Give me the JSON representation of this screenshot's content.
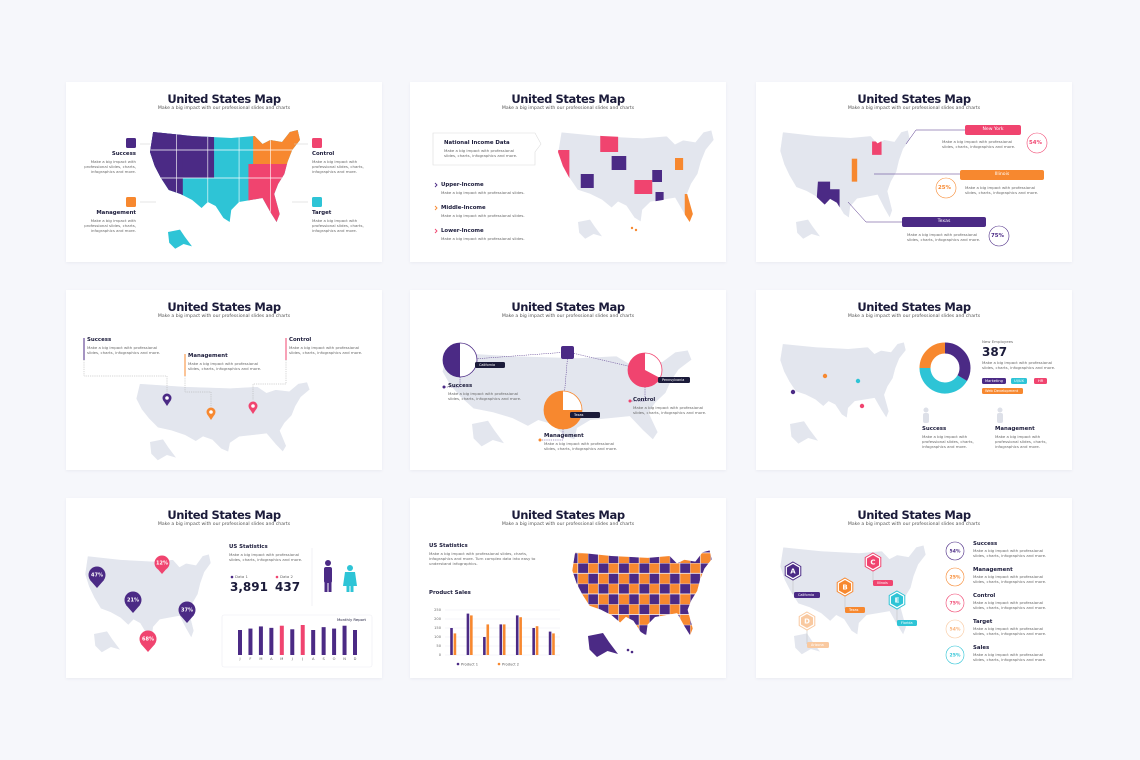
{
  "slides": [
    {
      "title": "United States Map",
      "subtitle": "Make a big impact with our professional slides and charts",
      "items": [
        {
          "label": "Success",
          "text": "Make a big impact with professional slides, charts, infographics and more."
        },
        {
          "label": "Control",
          "text": "Make a big impact with professional slides, charts, infographics and more."
        },
        {
          "label": "Management",
          "text": "Make a big impact with professional slides, charts, infographics and more."
        },
        {
          "label": "Target",
          "text": "Make a big impact with professional slides, charts, infographics and more."
        }
      ]
    },
    {
      "title": "United States Map",
      "subtitle": "Make a big impact with our professional slides and charts",
      "box": {
        "title": "National Income Data",
        "text": "Make a big impact with professional slides, charts, infographics and more."
      },
      "items": [
        {
          "label": "Upper-Income",
          "text": "Make a big impact with professional slides."
        },
        {
          "label": "Middle-Income",
          "text": "Make a big impact with professional slides."
        },
        {
          "label": "Lower-Income",
          "text": "Make a big impact with professional slides."
        }
      ]
    },
    {
      "title": "United States Map",
      "subtitle": "Make a big impact with our professional slides and charts",
      "items": [
        {
          "label": "New York",
          "value": "54%",
          "text": "Make a big impact with professional slides, charts, infographics and more."
        },
        {
          "label": "Illinois",
          "value": "25%",
          "text": "Make a big impact with professional slides, charts, infographics and more."
        },
        {
          "label": "Texas",
          "value": "75%",
          "text": "Make a big impact with professional slides, charts, infographics and more."
        }
      ]
    },
    {
      "title": "United States Map",
      "subtitle": "Make a big impact with our professional slides and charts",
      "items": [
        {
          "label": "Success",
          "text": "Make a big impact with professional slides, charts, infographics and more."
        },
        {
          "label": "Management",
          "text": "Make a big impact with professional slides, charts, infographics and more."
        },
        {
          "label": "Control",
          "text": "Make a big impact with professional slides, charts, infographics and more."
        }
      ]
    },
    {
      "title": "United States Map",
      "subtitle": "Make a big impact with our professional slides and charts",
      "tags": [
        "California",
        "Texas",
        "Pennsylvania"
      ],
      "items": [
        {
          "label": "Success",
          "text": "Make a big impact with professional slides, charts, infographics and more."
        },
        {
          "label": "Management",
          "text": "Make a big impact with professional slides, charts, infographics and more."
        },
        {
          "label": "Control",
          "text": "Make a big impact with professional slides, charts, infographics and more."
        }
      ]
    },
    {
      "title": "United States Map",
      "subtitle": "Make a big impact with our professional slides and charts",
      "stat": {
        "label": "New Employees",
        "value": "387",
        "text": "Make a big impact with professional slides, charts, infographics and more."
      },
      "tags": [
        "Marketing",
        "UI/UX",
        "HR",
        "Web Development"
      ],
      "items": [
        {
          "label": "Success",
          "text": "Make a big impact with professional slides, charts, infographics and more."
        },
        {
          "label": "Management",
          "text": "Make a big impact with professional slides, charts, infographics and more."
        }
      ]
    },
    {
      "title": "United States Map",
      "subtitle": "Make a big impact with our professional slides and charts",
      "stats": {
        "title": "US Statistics",
        "text": "Make a big impact with professional slides, charts, infographics and more.",
        "data": [
          {
            "label": "Data 1",
            "value": "3,891"
          },
          {
            "label": "Data 2",
            "value": "437"
          }
        ]
      },
      "pins": [
        "47%",
        "12%",
        "21%",
        "37%",
        "68%"
      ],
      "monthly": {
        "title": "Monthly Report",
        "categories": [
          "J",
          "F",
          "M",
          "A",
          "M",
          "J",
          "J",
          "A",
          "S",
          "O",
          "N",
          "D"
        ],
        "values": [
          70,
          74,
          80,
          76,
          82,
          72,
          84,
          70,
          78,
          74,
          82,
          70
        ],
        "colors": [
          "#4b2a85",
          "#4b2a85",
          "#4b2a85",
          "#4b2a85",
          "#f0446f",
          "#4b2a85",
          "#f0446f",
          "#4b2a85",
          "#4b2a85",
          "#4b2a85",
          "#4b2a85",
          "#4b2a85"
        ]
      }
    },
    {
      "title": "United States Map",
      "subtitle": "Make a big impact with our professional slides and charts",
      "stats": {
        "title": "US Statistics",
        "text": "Make a big impact with professional slides, charts, infographics and more. Turn complex data into easy to understand infographics."
      },
      "chart": {
        "type": "bar",
        "title": "Product Sales",
        "ylim": [
          0,
          250
        ],
        "yticks": [
          0,
          50,
          100,
          150,
          200,
          250
        ],
        "grid": true,
        "series": [
          {
            "name": "Product 1",
            "color": "#4b2a85",
            "values": [
              150,
              230,
              100,
              170,
              220,
              150,
              130
            ]
          },
          {
            "name": "Product 2",
            "color": "#f7882f",
            "values": [
              120,
              220,
              170,
              170,
              210,
              160,
              120
            ]
          }
        ]
      }
    },
    {
      "title": "United States Map",
      "subtitle": "Make a big impact with our professional slides and charts",
      "hexes": [
        {
          "letter": "A",
          "label": "California"
        },
        {
          "letter": "B",
          "label": "Texas"
        },
        {
          "letter": "C",
          "label": "Illinois"
        },
        {
          "letter": "D",
          "label": "Arizona"
        },
        {
          "letter": "E",
          "label": "Florida"
        }
      ],
      "items": [
        {
          "value": "54%",
          "label": "Success",
          "text": "Make a big impact with professional slides, charts, infographics and more."
        },
        {
          "value": "25%",
          "label": "Management",
          "text": "Make a big impact with professional slides, charts, infographics and more."
        },
        {
          "value": "75%",
          "label": "Control",
          "text": "Make a big impact with professional slides, charts, infographics and more."
        },
        {
          "value": "54%",
          "label": "Target",
          "text": "Make a big impact with professional slides, charts, infographics and more."
        },
        {
          "value": "25%",
          "label": "Sales",
          "text": "Make a big impact with professional slides, charts, infographics and more."
        }
      ]
    }
  ]
}
